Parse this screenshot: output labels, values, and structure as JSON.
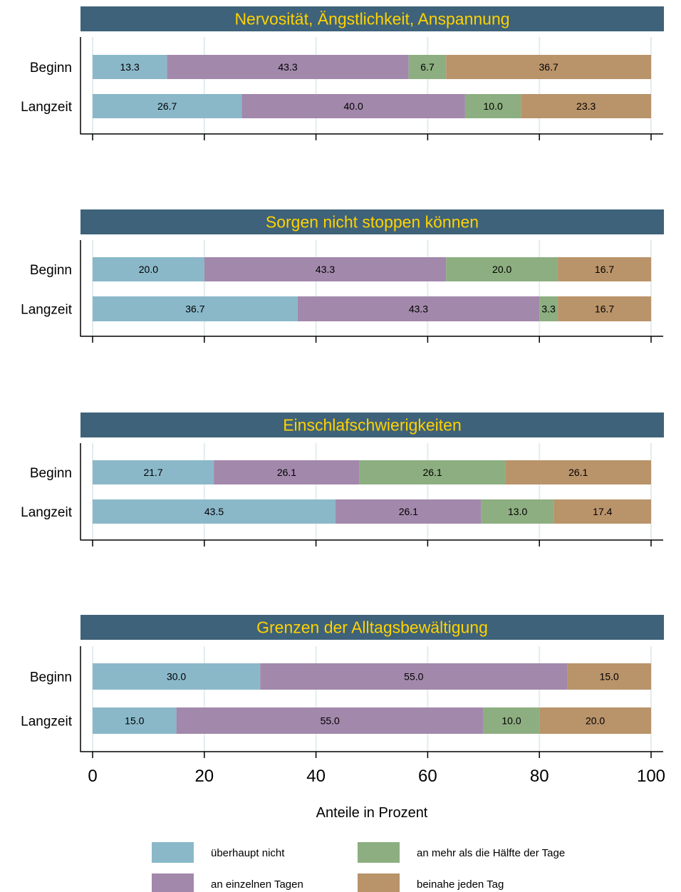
{
  "colors": {
    "title_bar": "#3e6279",
    "title_text": "#ffd200",
    "grid": "#e3ecee",
    "axis": "#000000",
    "background": "#ffffff"
  },
  "chart_data": {
    "type": "bar",
    "orientation": "horizontal",
    "stacked": true,
    "xlabel": "Anteile in Prozent",
    "xlim": [
      0,
      100
    ],
    "x_ticks": [
      0,
      20,
      40,
      60,
      80,
      100
    ],
    "grid": true,
    "legend_position": "bottom",
    "series": [
      {
        "name": "überhaupt nicht",
        "color": "#8ab8c9"
      },
      {
        "name": "an einzelnen Tagen",
        "color": "#a288ab"
      },
      {
        "name": "an mehr als die Hälfte der Tage",
        "color": "#8dae80"
      },
      {
        "name": "beinahe jeden Tag",
        "color": "#b9936a"
      }
    ],
    "panels": [
      {
        "title": "Nervosität, Ängstlichkeit, Anspannung",
        "categories": [
          "Beginn",
          "Langzeit"
        ],
        "values": [
          [
            13.3,
            43.3,
            6.7,
            36.7
          ],
          [
            26.7,
            40.0,
            10.0,
            23.3
          ]
        ],
        "labels": [
          [
            "13.3",
            "43.3",
            "6.7",
            "36.7"
          ],
          [
            "26.7",
            "40.0",
            "10.0",
            "23.3"
          ]
        ]
      },
      {
        "title": "Sorgen nicht stoppen können",
        "categories": [
          "Beginn",
          "Langzeit"
        ],
        "values": [
          [
            20.0,
            43.3,
            20.0,
            16.7
          ],
          [
            36.7,
            43.3,
            3.3,
            16.7
          ]
        ],
        "labels": [
          [
            "20.0",
            "43.3",
            "20.0",
            "16.7"
          ],
          [
            "36.7",
            "43.3",
            "3.3",
            "16.7"
          ]
        ]
      },
      {
        "title": "Einschlafschwierigkeiten",
        "categories": [
          "Beginn",
          "Langzeit"
        ],
        "values": [
          [
            21.7,
            26.1,
            26.1,
            26.1
          ],
          [
            43.5,
            26.1,
            13.0,
            17.4
          ]
        ],
        "labels": [
          [
            "21.7",
            "26.1",
            "26.1",
            "26.1"
          ],
          [
            "43.5",
            "26.1",
            "13.0",
            "17.4"
          ]
        ]
      },
      {
        "title": "Grenzen der Alltagsbewältigung",
        "categories": [
          "Beginn",
          "Langzeit"
        ],
        "values": [
          [
            30.0,
            55.0,
            0,
            15.0
          ],
          [
            15.0,
            55.0,
            10.0,
            20.0
          ]
        ],
        "labels": [
          [
            "30.0",
            "55.0",
            "",
            "15.0"
          ],
          [
            "15.0",
            "55.0",
            "10.0",
            "20.0"
          ]
        ]
      }
    ]
  }
}
